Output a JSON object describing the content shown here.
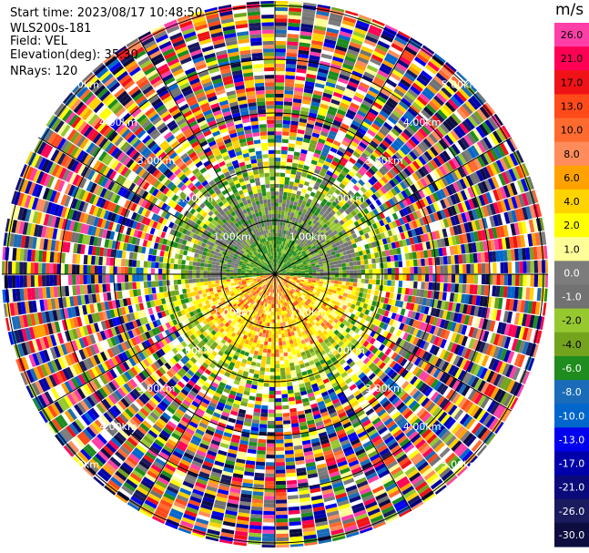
{
  "header": {
    "start_time": "Start time: 2023/08/17 10:48:50",
    "instrument": "WLS200s-181",
    "field": "Field: VEL",
    "elevation": "Elevation(deg): 35.30",
    "nrays": "NRays: 120"
  },
  "colorbar": {
    "unit": "m/s",
    "labels": [
      "26.0",
      "21.0",
      "17.0",
      "13.0",
      "10.0",
      "8.0",
      "6.0",
      "4.0",
      "2.0",
      "1.0",
      "0.0",
      "-1.0",
      "-2.0",
      "-4.0",
      "-6.0",
      "-8.0",
      "-10.0",
      "-13.0",
      "-17.0",
      "-21.0",
      "-26.0",
      "-30.0"
    ],
    "colors": [
      "#ff3fa7",
      "#ff0055",
      "#ef1216",
      "#ff4a1a",
      "#ff6b2e",
      "#ff8c5a",
      "#ffa200",
      "#ffd300",
      "#ffff00",
      "#ffff99",
      "#7c7c7c",
      "#727272",
      "#96c830",
      "#74a31e",
      "#1e8c1e",
      "#1a6cb8",
      "#0066cc",
      "#0000ee",
      "#0000aa",
      "#0a0a7a",
      "#1a1a5e",
      "#0d0d40"
    ]
  },
  "range_labels": {
    "r1": "1.00km",
    "r2": "2.00km",
    "r3": "3.00km",
    "r4": "4.00km",
    "r5": "5.00km"
  },
  "chart_data": {
    "type": "heatmap",
    "projection": "polar PPI",
    "field": "VEL",
    "unit": "m/s",
    "elevation_deg": 35.3,
    "n_rays": 120,
    "range_rings_km": [
      1,
      2,
      3,
      4,
      5
    ],
    "colorbar_bounds": [
      -30,
      -26,
      -21,
      -17,
      -13,
      -10,
      -8,
      -6,
      -4,
      -2,
      -1,
      0,
      1,
      2,
      4,
      6,
      8,
      10,
      13,
      17,
      21,
      26
    ],
    "description_regions": {
      "near_field_north_km": [
        0,
        1.5
      ],
      "near_field_north_velocity": "approx -1 to -6 (gray/green)",
      "near_field_south_km": [
        0,
        1.6
      ],
      "near_field_south_velocity": "approx 1 to 6 (yellow/orange)",
      "far_field": "noisy, all colors"
    }
  }
}
